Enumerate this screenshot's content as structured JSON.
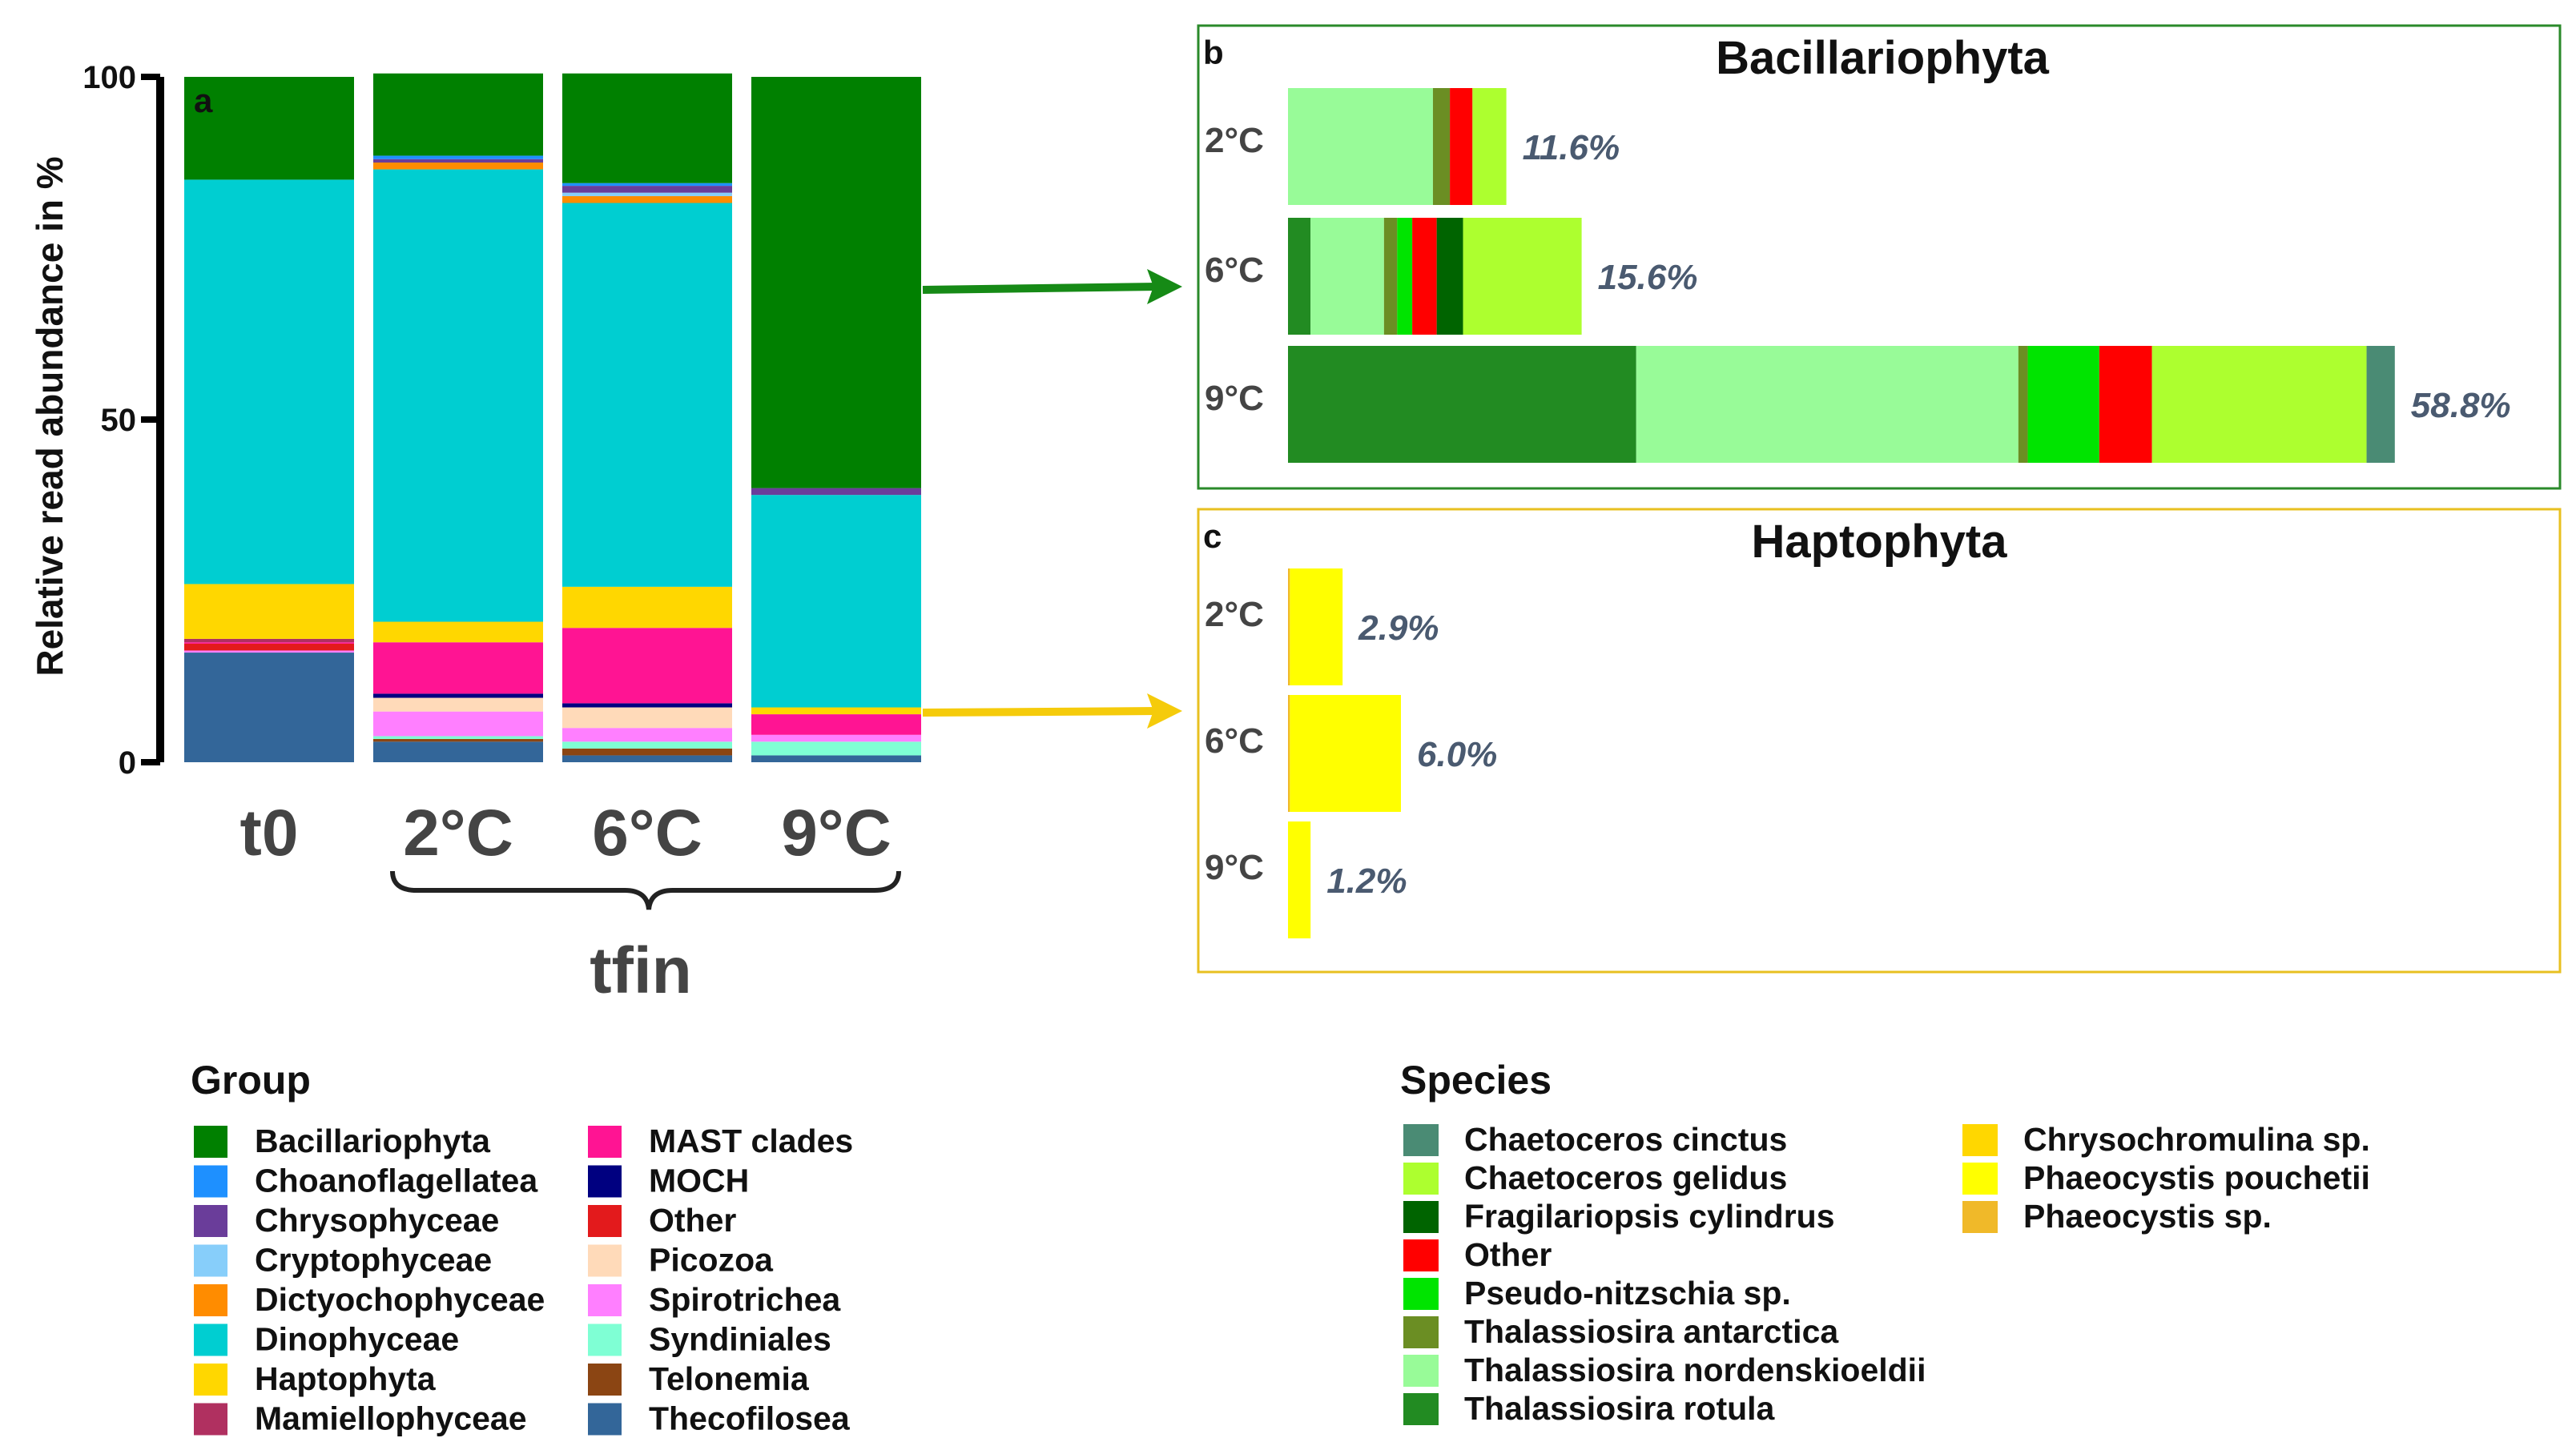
{
  "chart_data": [
    {
      "panel": "a",
      "type": "bar",
      "stacked": true,
      "ylabel": "Relative read abundance in %",
      "ylim": [
        0,
        100
      ],
      "yticks": [
        0,
        50,
        100
      ],
      "categories": [
        "t0",
        "2°C",
        "6°C",
        "9°C"
      ],
      "group_label": "tfin",
      "legend_title": "Group",
      "series": [
        {
          "name": "Thecofilosea",
          "color": "#336699",
          "values": [
            16,
            3,
            1,
            1
          ]
        },
        {
          "name": "Telonemia",
          "color": "#8B4513",
          "values": [
            0,
            0.4,
            1,
            0
          ]
        },
        {
          "name": "Syndiniales",
          "color": "#7FFFD4",
          "values": [
            0,
            0.4,
            1,
            2
          ]
        },
        {
          "name": "Spirotrichea",
          "color": "#FF7FFF",
          "values": [
            0.3,
            3.6,
            2,
            1
          ]
        },
        {
          "name": "Picozoa",
          "color": "#FFDAB9",
          "values": [
            0,
            2,
            3,
            0
          ]
        },
        {
          "name": "Other",
          "color": "#E31A1C",
          "values": [
            1,
            0,
            0,
            0
          ]
        },
        {
          "name": "MOCH",
          "color": "#000080",
          "values": [
            0,
            0.6,
            0.6,
            0
          ]
        },
        {
          "name": "MAST clades",
          "color": "#FF1493",
          "values": [
            0.2,
            7.5,
            11,
            3
          ]
        },
        {
          "name": "Mamiellophyceae",
          "color": "#B03060",
          "values": [
            0.5,
            0,
            0,
            0
          ]
        },
        {
          "name": "Haptophyta",
          "color": "#FFD700",
          "values": [
            8,
            3,
            6,
            1
          ]
        },
        {
          "name": "Dinophyceae",
          "color": "#00CED1",
          "values": [
            59,
            66,
            56,
            31
          ]
        },
        {
          "name": "Dictyochophyceae",
          "color": "#FF8C00",
          "values": [
            0,
            1,
            1,
            0
          ]
        },
        {
          "name": "Cryptophyceae",
          "color": "#87CEFA",
          "values": [
            0,
            0,
            0.5,
            0
          ]
        },
        {
          "name": "Chrysophyceae",
          "color": "#6A3D9A",
          "values": [
            0,
            0.5,
            1,
            1
          ]
        },
        {
          "name": "Choanoflagellatea",
          "color": "#1E90FF",
          "values": [
            0,
            0.5,
            0.4,
            0
          ]
        },
        {
          "name": "Bacillariophyta",
          "color": "#008000",
          "values": [
            15,
            12,
            16,
            60
          ]
        }
      ],
      "legend_order": [
        "Bacillariophyta",
        "Choanoflagellatea",
        "Chrysophyceae",
        "Cryptophyceae",
        "Dictyochophyceae",
        "Dinophyceae",
        "Haptophyta",
        "Mamiellophyceae",
        "MAST clades",
        "MOCH",
        "Other",
        "Picozoa",
        "Spirotrichea",
        "Syndiniales",
        "Telonemia",
        "Thecofilosea"
      ]
    },
    {
      "panel": "b",
      "type": "bar",
      "orientation": "horizontal",
      "stacked": true,
      "title": "Bacillariophyta",
      "xlim": [
        0,
        60
      ],
      "categories": [
        "2°C",
        "6°C",
        "9°C"
      ],
      "totals_labels": [
        "11.6%",
        "15.6%",
        "58.8%"
      ],
      "segments": [
        [
          {
            "species": "Thalassiosira nordenskioeldii",
            "value": 7.7
          },
          {
            "species": "Thalassiosira antarctica",
            "value": 0.9
          },
          {
            "species": "Other",
            "value": 1.2
          },
          {
            "species": "Chaetoceros gelidus",
            "value": 1.8
          }
        ],
        [
          {
            "species": "Thalassiosira rotula",
            "value": 1.2
          },
          {
            "species": "Thalassiosira nordenskioeldii",
            "value": 3.9
          },
          {
            "species": "Thalassiosira antarctica",
            "value": 0.7
          },
          {
            "species": "Pseudo-nitzschia sp.",
            "value": 0.8
          },
          {
            "species": "Other",
            "value": 1.3
          },
          {
            "species": "Fragilariopsis cylindrus",
            "value": 1.4
          },
          {
            "species": "Chaetoceros gelidus",
            "value": 6.3
          }
        ],
        [
          {
            "species": "Thalassiosira rotula",
            "value": 18.5
          },
          {
            "species": "Thalassiosira nordenskioeldii",
            "value": 20.3
          },
          {
            "species": "Thalassiosira antarctica",
            "value": 0.5
          },
          {
            "species": "Pseudo-nitzschia sp.",
            "value": 3.8
          },
          {
            "species": "Other",
            "value": 2.8
          },
          {
            "species": "Chaetoceros gelidus",
            "value": 11.4
          },
          {
            "species": "Chaetoceros cinctus",
            "value": 1.5
          }
        ]
      ]
    },
    {
      "panel": "c",
      "type": "bar",
      "orientation": "horizontal",
      "stacked": true,
      "title": "Haptophyta",
      "xlim": [
        0,
        60
      ],
      "categories": [
        "2°C",
        "6°C",
        "9°C"
      ],
      "totals_labels": [
        "2.9%",
        "6.0%",
        "1.2%"
      ],
      "segments": [
        [
          {
            "species": "Phaeocystis sp.",
            "value": 0.1
          },
          {
            "species": "Phaeocystis pouchetii",
            "value": 2.8
          }
        ],
        [
          {
            "species": "Phaeocystis sp.",
            "value": 0.1
          },
          {
            "species": "Phaeocystis pouchetii",
            "value": 5.9
          }
        ],
        [
          {
            "species": "Phaeocystis pouchetii",
            "value": 1.2
          }
        ]
      ]
    }
  ],
  "species_legend": {
    "title": "Species",
    "items": [
      {
        "name": "Chaetoceros cinctus",
        "color": "#4A8B74"
      },
      {
        "name": "Chaetoceros gelidus",
        "color": "#ADFF2F"
      },
      {
        "name": "Fragilariopsis cylindrus",
        "color": "#006400"
      },
      {
        "name": "Other",
        "color": "#FF0000"
      },
      {
        "name": "Pseudo-nitzschia sp.",
        "color": "#00E400"
      },
      {
        "name": "Thalassiosira antarctica",
        "color": "#6B8E23"
      },
      {
        "name": "Thalassiosira nordenskioeldii",
        "color": "#98FB98"
      },
      {
        "name": "Thalassiosira rotula",
        "color": "#228B22"
      },
      {
        "name": "Chrysochromulina sp.",
        "color": "#FFD700"
      },
      {
        "name": "Phaeocystis pouchetii",
        "color": "#FFFF00"
      },
      {
        "name": "Phaeocystis sp.",
        "color": "#F0B929"
      }
    ]
  },
  "panel_letters": {
    "a": "a",
    "b": "b",
    "c": "c"
  },
  "colors": {
    "bacillariophyta_arrow": "#168a16",
    "haptophyta_arrow": "#F5CB0B",
    "panel_b_border": "#2a8a2a",
    "panel_c_border": "#E8C020"
  }
}
